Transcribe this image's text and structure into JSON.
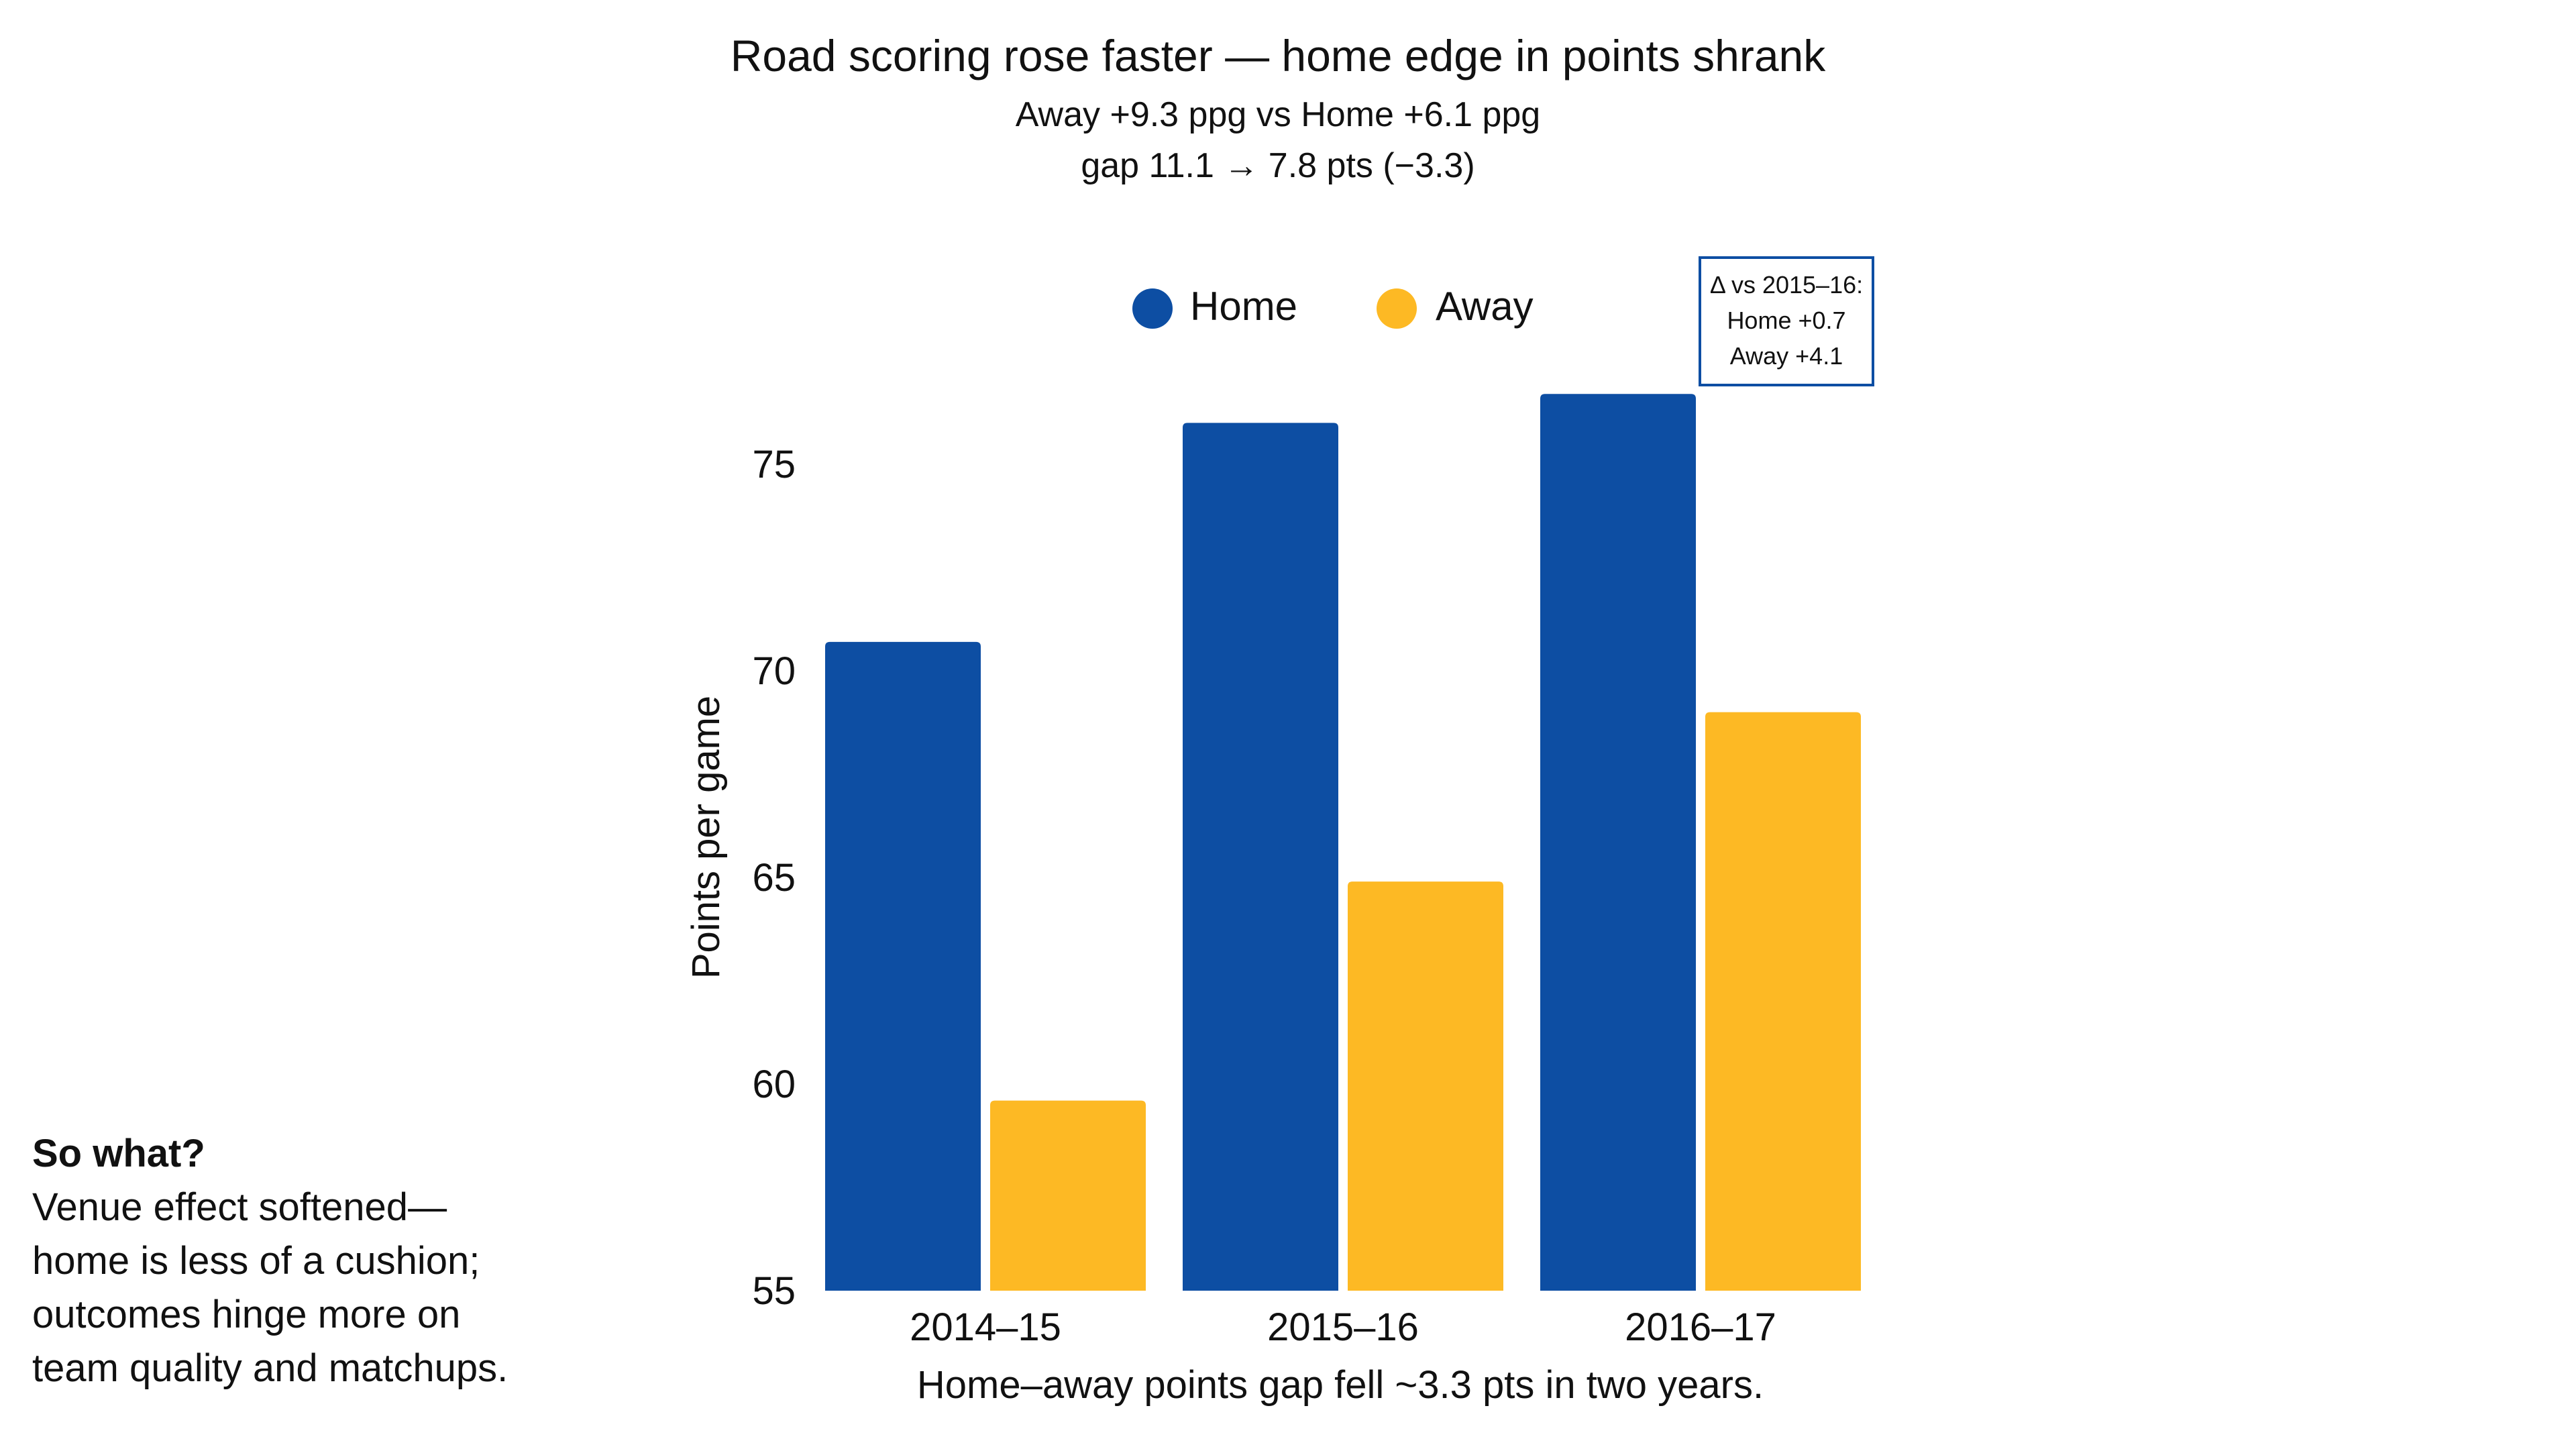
{
  "chart_data": {
    "type": "bar",
    "title": "Road scoring rose faster — home edge in points shrank",
    "subtitle_lines": [
      "Away +9.3 ppg vs Home +6.1 ppg",
      "gap 11.1 → 7.8 pts (−3.3)"
    ],
    "xlabel": "Home–away points gap fell ~3.3 pts in two years.",
    "ylabel": "Points per game",
    "categories": [
      "2014–15",
      "2015–16",
      "2016–17"
    ],
    "series": [
      {
        "name": "Home",
        "color": "#0d4ea3",
        "values": [
          70.7,
          76.0,
          76.7
        ]
      },
      {
        "name": "Away",
        "color": "#fdb924",
        "values": [
          59.6,
          64.9,
          69.0
        ]
      }
    ],
    "ylim": [
      55,
      78
    ],
    "yticks": [
      55,
      60,
      65,
      70,
      75
    ],
    "grid": false,
    "legend_position": "top-center",
    "annotation": {
      "lines": [
        "Δ vs 2015–16:",
        "Home +0.7",
        "Away +4.1"
      ],
      "border_color": "#0d4ea3"
    }
  },
  "side_note": {
    "heading": "So what?",
    "lines": [
      "Venue effect softened—",
      "home is less of a cushion;",
      "outcomes hinge more on",
      "team quality and matchups."
    ]
  }
}
